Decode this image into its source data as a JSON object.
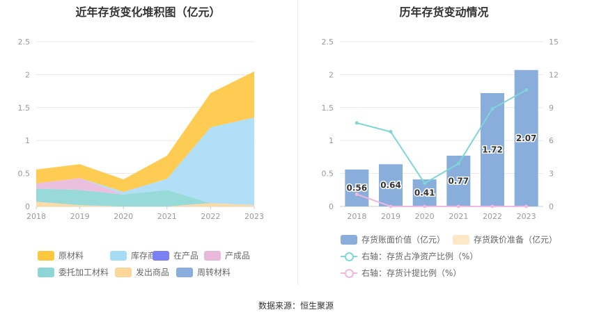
{
  "left_chart": {
    "title": "近年存货变化堆积图（亿元）",
    "legend": [
      {
        "label": "原材料",
        "color": "#ffc640"
      },
      {
        "label": "库存商品",
        "color": "#a8dcf6"
      },
      {
        "label": "在产品",
        "color": "#7b7ff6"
      },
      {
        "label": "产成品",
        "color": "#e9b9da"
      },
      {
        "label": "委托加工材料",
        "color": "#8dd6d6"
      },
      {
        "label": "发出商品",
        "color": "#fdd79a"
      },
      {
        "label": "周转材料",
        "color": "#8aaedb"
      }
    ]
  },
  "right_chart": {
    "title": "历年存货变动情况",
    "legend": [
      {
        "label": "存货账面价值（亿元）",
        "color": "#8aaedb"
      },
      {
        "label": "存货跌价准备（亿元）",
        "color": "#fde7c6"
      },
      {
        "label": "右轴：存货占净资产比例（%）",
        "color": "#7fd6d6"
      },
      {
        "label": "右轴：存货计提比例（%）",
        "color": "#f0b8e0"
      }
    ]
  },
  "source": "数据来源：恒生聚源",
  "chart_data": [
    {
      "type": "area",
      "stacked": true,
      "title": "近年存货变化堆积图（亿元）",
      "categories": [
        "2018",
        "2019",
        "2020",
        "2021",
        "2022",
        "2023"
      ],
      "ylim": [
        0,
        2.5
      ],
      "yticks": [
        "0",
        "0.5",
        "1",
        "1.5",
        "2",
        "2.5"
      ],
      "series": [
        {
          "name": "发出商品",
          "color": "#fdd79a",
          "values": [
            0.07,
            0.02,
            0.0,
            0.0,
            0.05,
            0.02
          ]
        },
        {
          "name": "委托加工材料",
          "color": "#8dd6d6",
          "values": [
            0.2,
            0.23,
            0.18,
            0.25,
            0.0,
            0.0
          ]
        },
        {
          "name": "产成品",
          "color": "#e9b9da",
          "values": [
            0.08,
            0.18,
            0.0,
            0.0,
            0.0,
            0.0
          ]
        },
        {
          "name": "库存商品",
          "color": "#a8dcf6",
          "values": [
            0.0,
            0.0,
            0.04,
            0.17,
            1.15,
            1.33
          ]
        },
        {
          "name": "原材料",
          "color": "#ffc640",
          "values": [
            0.21,
            0.21,
            0.19,
            0.35,
            0.52,
            0.7
          ]
        }
      ],
      "legend_position": "bottom",
      "grid": true
    },
    {
      "type": "bar",
      "title": "历年存货变动情况",
      "categories": [
        "2018",
        "2019",
        "2020",
        "2021",
        "2022",
        "2023"
      ],
      "ylim": [
        0,
        2.5
      ],
      "yticks": [
        "0",
        "0.5",
        "1",
        "1.5",
        "2",
        "2.5"
      ],
      "y2lim": [
        0,
        15
      ],
      "y2ticks": [
        "0",
        "3",
        "6",
        "9",
        "12",
        "15"
      ],
      "series": [
        {
          "name": "存货账面价值（亿元）",
          "type": "bar",
          "axis": "left",
          "color": "#8aaedb",
          "values": [
            0.56,
            0.64,
            0.41,
            0.77,
            1.72,
            2.07
          ],
          "labels": [
            "0.56",
            "0.64",
            "0.41",
            "0.77",
            "1.72",
            "2.07"
          ]
        },
        {
          "name": "存货跌价准备（亿元）",
          "type": "bar",
          "axis": "left",
          "color": "#fde7c6",
          "values": [
            0,
            0,
            0,
            0,
            0,
            0
          ]
        },
        {
          "name": "右轴：存货占净资产比例（%）",
          "type": "line",
          "axis": "right",
          "color": "#7fd6d6",
          "values": [
            7.6,
            6.8,
            2.1,
            3.9,
            8.9,
            10.6
          ]
        },
        {
          "name": "右轴：存货计提比例（%）",
          "type": "line",
          "axis": "right",
          "color": "#f0b8e0",
          "values": [
            1.1,
            0.0,
            0.0,
            0.0,
            0.0,
            0.0
          ]
        }
      ],
      "legend_position": "bottom",
      "grid": true
    }
  ]
}
